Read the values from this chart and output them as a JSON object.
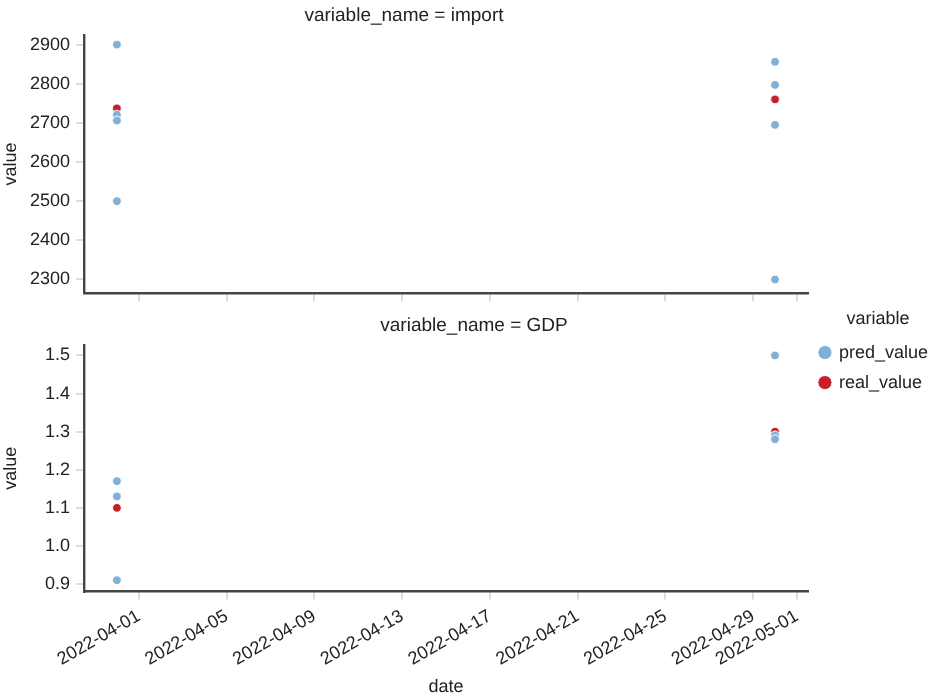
{
  "chart_data": [
    {
      "type": "scatter",
      "title": "variable_name = import",
      "ylabel": "value",
      "xlim": [
        "2022-03-29T12:00",
        "2022-05-01T12:00"
      ],
      "xticks": [
        "2022-04-01",
        "2022-04-05",
        "2022-04-09",
        "2022-04-13",
        "2022-04-17",
        "2022-04-21",
        "2022-04-25",
        "2022-04-29",
        "2022-05-01"
      ],
      "ylim": [
        2265,
        2925
      ],
      "yticks": [
        2300,
        2400,
        2500,
        2600,
        2700,
        2800,
        2900
      ],
      "tick_labels": "y",
      "grid": false,
      "legend": false,
      "marker": "circle",
      "series": [
        {
          "color": "#7fb0d8",
          "x": [
            "2022-03-31",
            "2022-03-31",
            "2022-03-31",
            "2022-03-31",
            "2022-04-30",
            "2022-04-30",
            "2022-04-30",
            "2022-04-30"
          ],
          "values": [
            2900,
            2721,
            2706,
            2500,
            2856,
            2797,
            2695,
            2300
          ]
        },
        {
          "color": "#c81e2a",
          "x": [
            "2022-03-31",
            "2022-04-30"
          ],
          "values": [
            2737,
            2760
          ]
        }
      ]
    },
    {
      "type": "scatter",
      "title": "variable_name = GDP",
      "xlabel": "date",
      "ylabel": "value",
      "legend_title": "variable",
      "xlim": [
        "2022-03-29T12:00",
        "2022-05-01T12:00"
      ],
      "xticks": [
        "2022-04-01",
        "2022-04-05",
        "2022-04-09",
        "2022-04-13",
        "2022-04-17",
        "2022-04-21",
        "2022-04-25",
        "2022-04-29",
        "2022-05-01"
      ],
      "ylim": [
        0.88,
        1.528
      ],
      "yticks": [
        0.9,
        {
          "value": 1,
          "label": "1.0"
        },
        1.1,
        1.2,
        1.3,
        1.4,
        1.5
      ],
      "grid": false,
      "legend": "right",
      "marker": "circle",
      "series": [
        {
          "name": "pred_value",
          "color": "#7fb0d8",
          "x": [
            "2022-03-31",
            "2022-03-31",
            "2022-03-31",
            "2022-04-30",
            "2022-04-30",
            "2022-04-30"
          ],
          "values": [
            1.17,
            1.13,
            0.91,
            1.5,
            1.29,
            1.28
          ]
        },
        {
          "name": "real_value",
          "color": "#c81e2a",
          "x": [
            "2022-03-31",
            "2022-04-30"
          ],
          "values": [
            1.1,
            1.3
          ]
        }
      ]
    }
  ]
}
